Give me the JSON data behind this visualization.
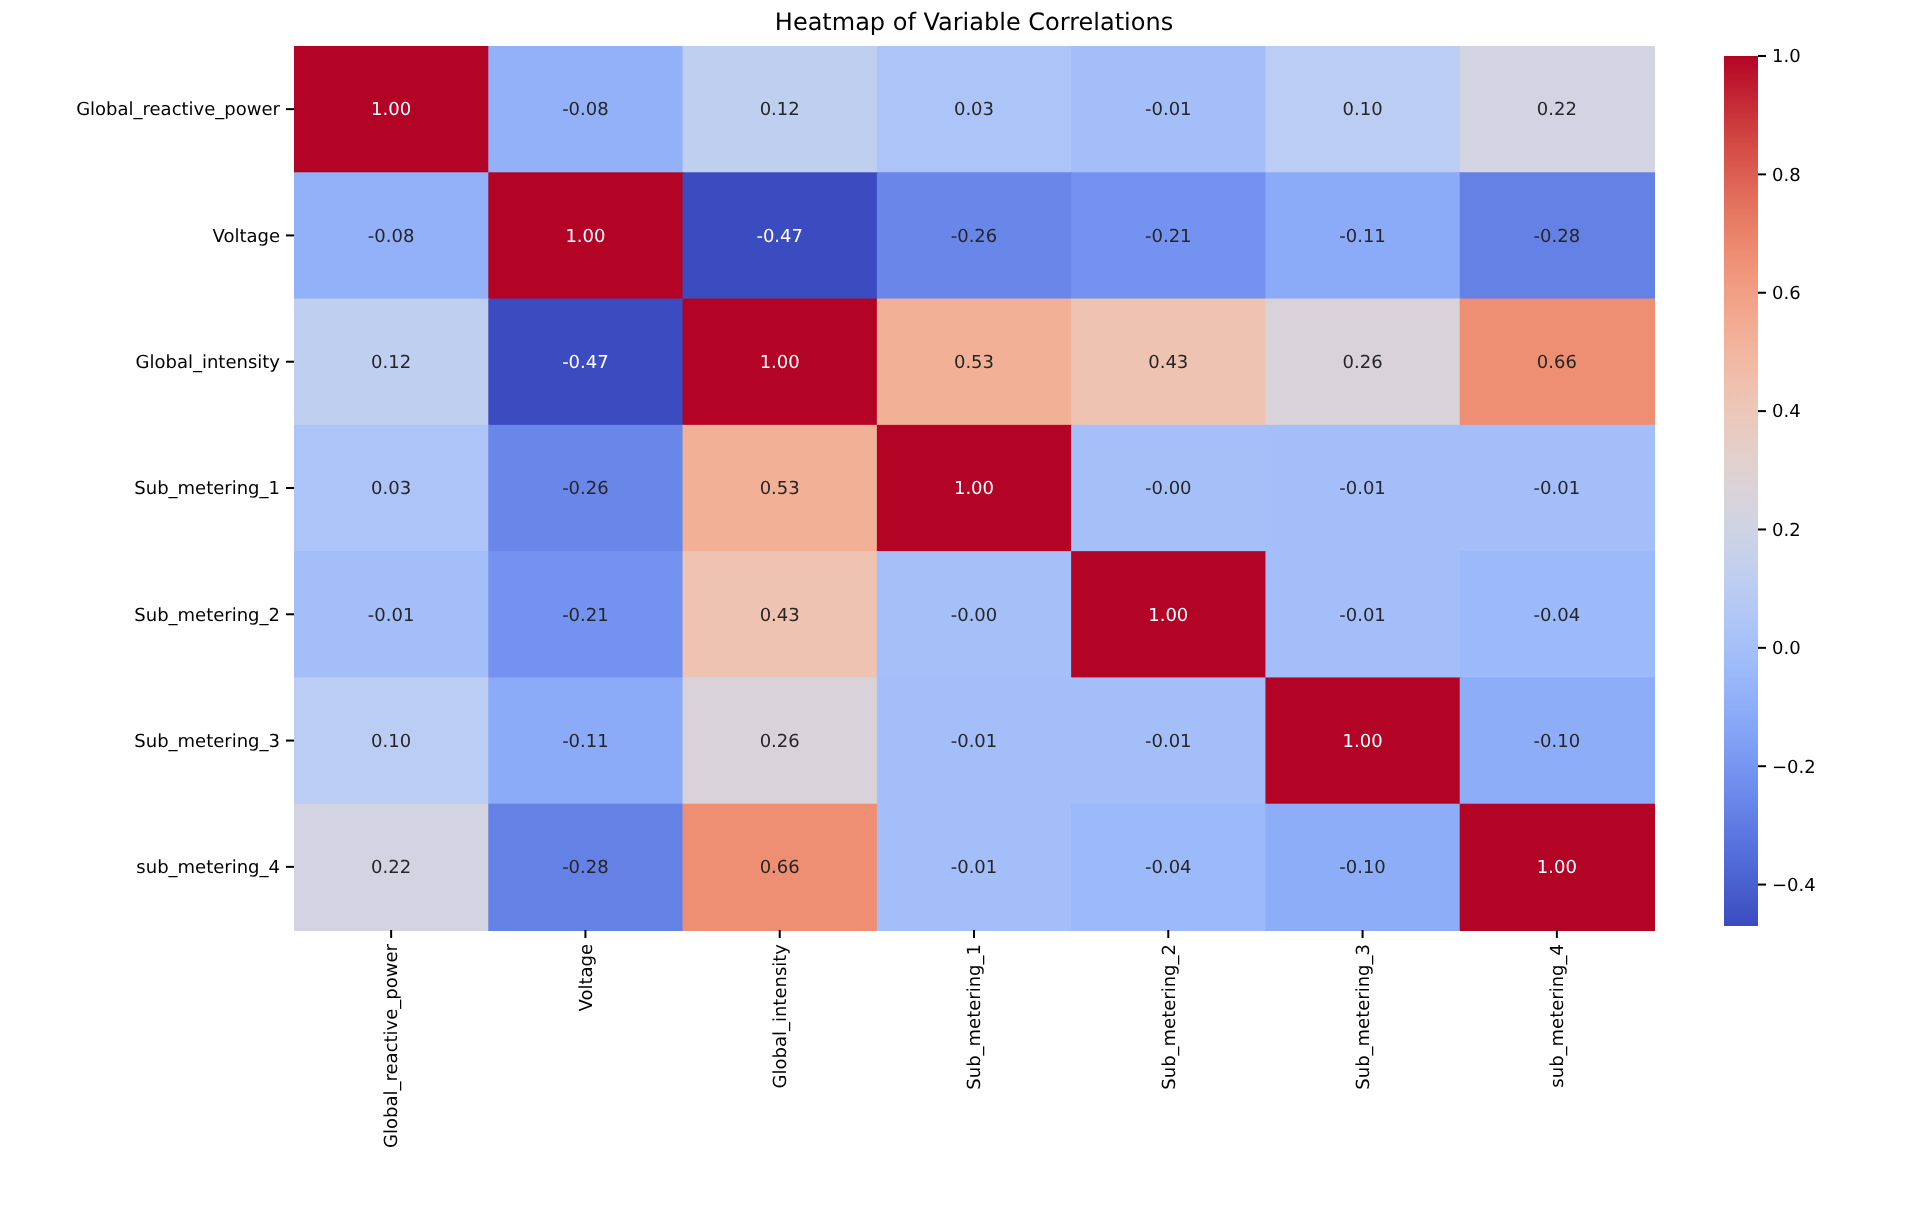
{
  "chart_data": {
    "type": "heatmap",
    "title": "Heatmap of Variable Correlations",
    "categories": [
      "Global_reactive_power",
      "Voltage",
      "Global_intensity",
      "Sub_metering_1",
      "Sub_metering_2",
      "Sub_metering_3",
      "sub_metering_4"
    ],
    "y_categories": [
      "Global_reactive_power",
      "Voltage",
      "Global_intensity",
      "Sub_metering_1",
      "Sub_metering_2",
      "Sub_metering_3",
      "sub_metering_4"
    ],
    "cells": [
      [
        1.0,
        -0.08,
        0.12,
        0.03,
        -0.01,
        0.1,
        0.22
      ],
      [
        -0.08,
        1.0,
        -0.47,
        -0.26,
        -0.21,
        -0.11,
        -0.28
      ],
      [
        0.12,
        -0.47,
        1.0,
        0.53,
        0.43,
        0.26,
        0.66
      ],
      [
        0.03,
        -0.26,
        0.53,
        1.0,
        0.0,
        -0.01,
        -0.01
      ],
      [
        -0.01,
        -0.21,
        0.43,
        0.0,
        1.0,
        -0.01,
        -0.04
      ],
      [
        0.1,
        -0.11,
        0.26,
        -0.01,
        -0.01,
        1.0,
        -0.1
      ],
      [
        0.22,
        -0.28,
        0.66,
        -0.01,
        -0.04,
        -0.1,
        1.0
      ]
    ],
    "cell_labels": [
      [
        "1.00",
        "-0.08",
        "0.12",
        "0.03",
        "-0.01",
        "0.10",
        "0.22"
      ],
      [
        "-0.08",
        "1.00",
        "-0.47",
        "-0.26",
        "-0.21",
        "-0.11",
        "-0.28"
      ],
      [
        "0.12",
        "-0.47",
        "1.00",
        "0.53",
        "0.43",
        "0.26",
        "0.66"
      ],
      [
        "0.03",
        "-0.26",
        "0.53",
        "1.00",
        "-0.00",
        "-0.01",
        "-0.01"
      ],
      [
        "-0.01",
        "-0.21",
        "0.43",
        "-0.00",
        "1.00",
        "-0.01",
        "-0.04"
      ],
      [
        "0.10",
        "-0.11",
        "0.26",
        "-0.01",
        "-0.01",
        "1.00",
        "-0.10"
      ],
      [
        "0.22",
        "-0.28",
        "0.66",
        "-0.01",
        "-0.04",
        "-0.10",
        "1.00"
      ]
    ],
    "clim": [
      -0.47,
      1.0
    ],
    "cticks": [
      {
        "value": -0.4,
        "label": "−0.4"
      },
      {
        "value": -0.2,
        "label": "−0.2"
      },
      {
        "value": 0,
        "label": "0.0"
      },
      {
        "value": 0.2,
        "label": "0.2"
      },
      {
        "value": 0.4,
        "label": "0.4"
      },
      {
        "value": 0.6,
        "label": "0.6"
      },
      {
        "value": 0.8,
        "label": "0.8"
      },
      {
        "value": 1,
        "label": "1.0"
      }
    ]
  }
}
